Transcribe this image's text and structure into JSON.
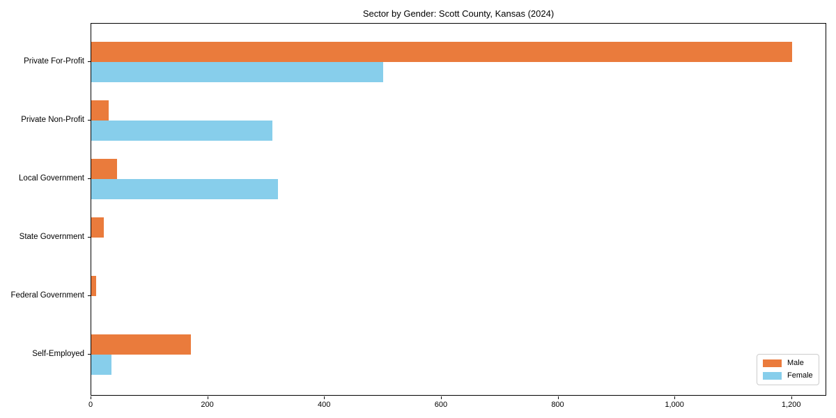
{
  "chart_data": {
    "type": "bar",
    "orientation": "horizontal",
    "title": "Sector by Gender: Scott County, Kansas (2024)",
    "categories": [
      "Private For-Profit",
      "Private Non-Profit",
      "Local Government",
      "State Government",
      "Federal Government",
      "Self-Employed"
    ],
    "series": [
      {
        "name": "Male",
        "color": "#EA7B3C",
        "values": [
          1200,
          30,
          44,
          22,
          8,
          170
        ]
      },
      {
        "name": "Female",
        "color": "#87CEEB",
        "values": [
          500,
          310,
          320,
          0,
          0,
          35
        ]
      }
    ],
    "xlabel": "",
    "ylabel": "",
    "xlim": [
      0,
      1260
    ],
    "x_ticks": [
      0,
      200,
      400,
      600,
      800,
      1000,
      1200
    ],
    "x_tick_labels": [
      "0",
      "200",
      "400",
      "600",
      "800",
      "1,000",
      "1,200"
    ],
    "grid": false,
    "legend_position": "lower right",
    "background": "#ffffff",
    "axis_color": "#000000"
  }
}
